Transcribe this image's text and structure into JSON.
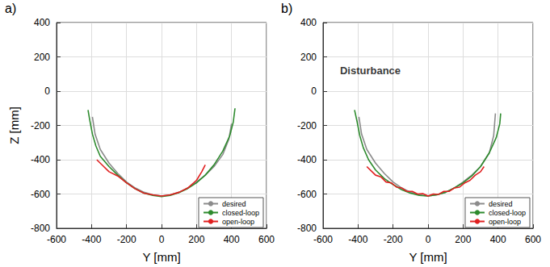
{
  "chart_data": [
    {
      "type": "line",
      "panel": "a)",
      "x_label": "Y [mm]",
      "y_label": "Z [mm]",
      "xlim": [
        -600,
        600
      ],
      "xticks": [
        -600,
        -400,
        -200,
        0,
        200,
        400,
        600
      ],
      "ylim": [
        -800,
        400
      ],
      "yticks": [
        -800,
        -600,
        -400,
        -200,
        0,
        200,
        400
      ],
      "grid": true,
      "legend": "lower right",
      "series": [
        {
          "name": "desired",
          "color": "#8c8c8c",
          "x": [
            -395,
            -380,
            -350,
            -300,
            -250,
            -200,
            -150,
            -100,
            -50,
            0,
            50,
            100,
            150,
            200,
            250,
            300,
            350,
            385,
            400
          ],
          "values": [
            -150,
            -250,
            -340,
            -420,
            -480,
            -530,
            -565,
            -590,
            -605,
            -612,
            -605,
            -590,
            -565,
            -530,
            -490,
            -440,
            -370,
            -280,
            -190
          ]
        },
        {
          "name": "closed-loop",
          "color": "#2e8b2e",
          "x": [
            -420,
            -410,
            -395,
            -375,
            -350,
            -300,
            -250,
            -200,
            -150,
            -100,
            -50,
            0,
            50,
            100,
            150,
            200,
            250,
            300,
            350,
            390,
            410,
            420
          ],
          "values": [
            -110,
            -170,
            -250,
            -320,
            -380,
            -440,
            -490,
            -535,
            -570,
            -595,
            -608,
            -615,
            -608,
            -592,
            -568,
            -535,
            -490,
            -430,
            -350,
            -260,
            -180,
            -100
          ]
        },
        {
          "name": "open-loop",
          "color": "#e02020",
          "x": [
            -370,
            -330,
            -300,
            -250,
            -200,
            -150,
            -100,
            -50,
            0,
            50,
            100,
            150,
            200,
            230,
            250
          ],
          "values": [
            -400,
            -440,
            -470,
            -495,
            -535,
            -570,
            -595,
            -605,
            -612,
            -605,
            -590,
            -565,
            -520,
            -470,
            -430
          ]
        }
      ]
    },
    {
      "type": "line",
      "panel": "b)",
      "x_label": "Y [mm]",
      "xlim": [
        -600,
        600
      ],
      "xticks": [
        -600,
        -400,
        -200,
        0,
        200,
        400,
        600
      ],
      "ylim": [
        -800,
        400
      ],
      "yticks": [
        -800,
        -600,
        -400,
        -200,
        0,
        200,
        400
      ],
      "grid": true,
      "legend": "lower right",
      "annotations": [
        {
          "text": "Disturbance",
          "x": -330,
          "y": 120
        }
      ],
      "series": [
        {
          "name": "desired",
          "color": "#8c8c8c",
          "x": [
            -395,
            -380,
            -350,
            -300,
            -250,
            -200,
            -150,
            -100,
            -50,
            0,
            50,
            100,
            150,
            200,
            250,
            300,
            350,
            375,
            385
          ],
          "values": [
            -150,
            -250,
            -340,
            -420,
            -480,
            -530,
            -565,
            -590,
            -605,
            -612,
            -605,
            -590,
            -565,
            -530,
            -490,
            -440,
            -360,
            -260,
            -130
          ]
        },
        {
          "name": "closed-loop",
          "color": "#2e8b2e",
          "x": [
            -420,
            -405,
            -390,
            -370,
            -340,
            -300,
            -250,
            -200,
            -150,
            -100,
            -50,
            0,
            50,
            100,
            150,
            200,
            250,
            300,
            350,
            390,
            410,
            415
          ],
          "values": [
            -110,
            -180,
            -260,
            -330,
            -400,
            -460,
            -510,
            -545,
            -575,
            -595,
            -608,
            -612,
            -605,
            -590,
            -565,
            -535,
            -495,
            -440,
            -360,
            -270,
            -190,
            -130
          ]
        },
        {
          "name": "open-loop",
          "color": "#e02020",
          "x": [
            -350,
            -320,
            -300,
            -270,
            -240,
            -210,
            -180,
            -150,
            -120,
            -90,
            -60,
            -30,
            0,
            30,
            60,
            90,
            120,
            150,
            180,
            210,
            240,
            270,
            300,
            320
          ],
          "values": [
            -440,
            -470,
            -490,
            -500,
            -530,
            -535,
            -560,
            -565,
            -585,
            -585,
            -600,
            -598,
            -612,
            -600,
            -602,
            -585,
            -585,
            -565,
            -560,
            -535,
            -520,
            -490,
            -470,
            -440
          ]
        }
      ]
    }
  ]
}
